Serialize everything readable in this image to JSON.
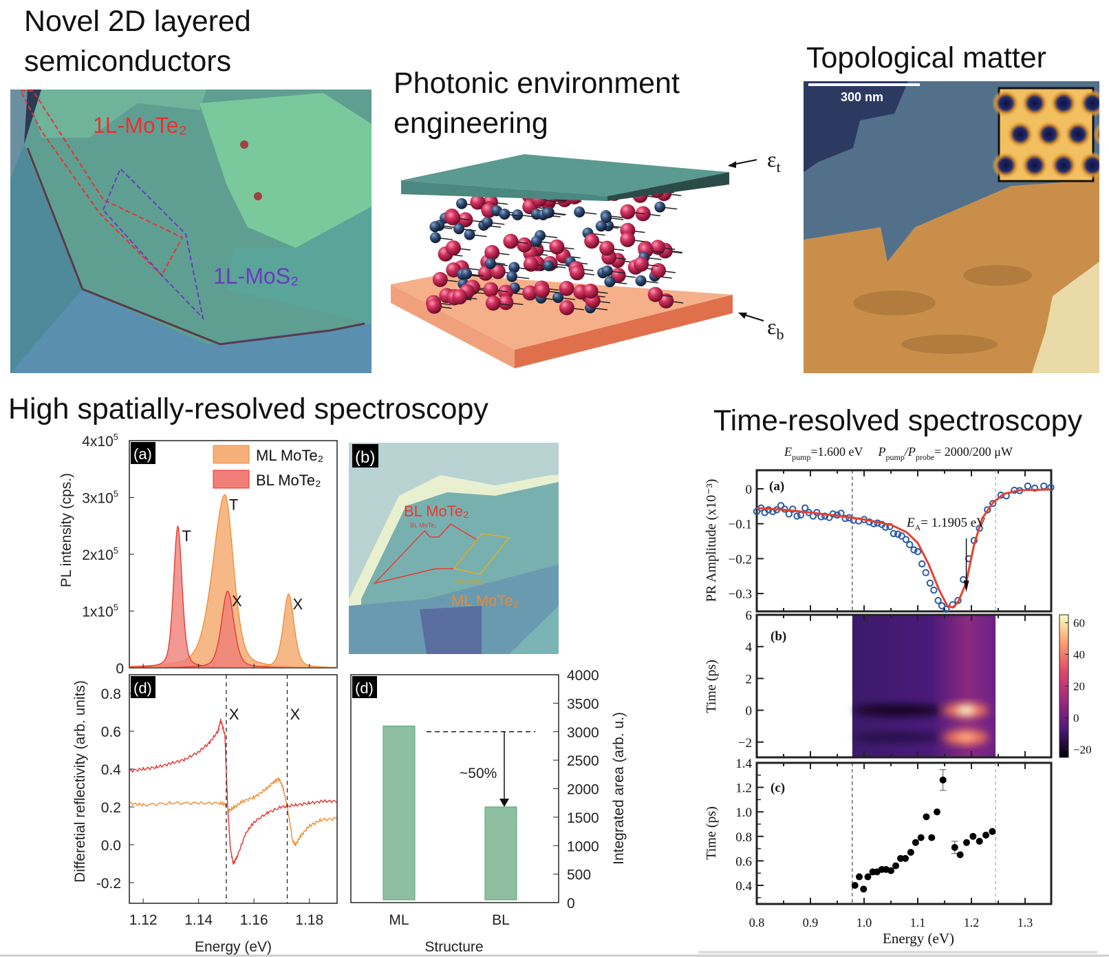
{
  "semiconductors": {
    "title_line1": "Novel 2D layered",
    "title_line2": "semiconductors",
    "label_mote2": "1L-MoTe₂",
    "label_mos2": "1L-MoS₂"
  },
  "photonic": {
    "title_line1": "Photonic environment",
    "title_line2": "engineering",
    "eps_top": "ε",
    "eps_top_sub": "t",
    "eps_bottom": "ε",
    "eps_bottom_sub": "b"
  },
  "topological": {
    "title": "Topological matter",
    "scale_bar": "300 nm"
  },
  "spatial": {
    "title": "High spatially-resolved spectroscopy",
    "image_b": {
      "panel_label": "(b)",
      "bl_large": "BL MoTe₂",
      "bl_small": "BL MoTe₂",
      "ml_small": "ML MoTe₂",
      "ml_large": "ML MoTe₂"
    },
    "energy_label": "Energy (eV)"
  },
  "time_resolved": {
    "title": "Time-resolved spectroscopy",
    "header": {
      "e": "E",
      "e_sub": "pump",
      "e_val": "=1.600 eV",
      "p1": "P",
      "p1_sub": "pump",
      "slash": "/P",
      "p2_sub": "probe",
      "p_val": "= 2000/200 μW"
    },
    "energy_label": "Energy (eV)"
  },
  "colors": {
    "ml": "#f5b07a",
    "ml_line": "#f08a30",
    "bl": "#ef7f78",
    "bl_line": "#e8322a",
    "bar": "#8dbfa0",
    "pr_points": "#2a5aa8",
    "pr_fit": "#e8402a"
  },
  "chart_data": [
    {
      "id": "pl",
      "type": "area",
      "panel_label": "(a)",
      "ylabel": "PL intensity (cps.)",
      "xlim": [
        1.115,
        1.19
      ],
      "ylim": [
        0,
        400000
      ],
      "yticks": [
        {
          "v": 0,
          "text": "0",
          "sup": ""
        },
        {
          "v": 100000,
          "text": "1x10",
          "sup": "5"
        },
        {
          "v": 200000,
          "text": "2x10",
          "sup": "5"
        },
        {
          "v": 300000,
          "text": "3x10",
          "sup": "5"
        },
        {
          "v": 400000,
          "text": "4x10",
          "sup": "5"
        }
      ],
      "legend": "top-right",
      "series": [
        {
          "name": "ML MoTe₂",
          "peaks": [
            {
              "label": "T",
              "energy": 1.1495,
              "intensity": 305000,
              "width": 0.0045
            },
            {
              "label": "X",
              "energy": 1.1725,
              "intensity": 130000,
              "width": 0.0028
            }
          ]
        },
        {
          "name": "BL MoTe₂",
          "peaks": [
            {
              "label": "T",
              "energy": 1.1325,
              "intensity": 250000,
              "width": 0.0022
            },
            {
              "label": "X",
              "energy": 1.1505,
              "intensity": 135000,
              "width": 0.0032
            }
          ]
        }
      ]
    },
    {
      "id": "dr",
      "type": "line",
      "panel_label": "(d)",
      "xlabel": "Energy (eV)",
      "ylabel": "Differetial reflectivity (arb. units)",
      "xlim": [
        1.115,
        1.19
      ],
      "ylim": [
        -0.31,
        0.9
      ],
      "xticks": [
        1.12,
        1.14,
        1.16,
        1.18
      ],
      "yticks": [
        -0.2,
        0.0,
        0.2,
        0.4,
        0.6,
        0.8
      ],
      "vlines": [
        1.15,
        1.172
      ],
      "vline_labels": [
        "X",
        "X"
      ],
      "series": [
        {
          "color": "#e8302a",
          "points": [
            [
              1.115,
              0.39
            ],
            [
              1.12,
              0.4
            ],
            [
              1.125,
              0.41
            ],
            [
              1.13,
              0.43
            ],
            [
              1.135,
              0.45
            ],
            [
              1.14,
              0.49
            ],
            [
              1.144,
              0.54
            ],
            [
              1.147,
              0.6
            ],
            [
              1.148,
              0.66
            ],
            [
              1.1495,
              0.58
            ],
            [
              1.1505,
              0.2
            ],
            [
              1.1515,
              -0.02
            ],
            [
              1.1525,
              -0.1
            ],
            [
              1.154,
              -0.06
            ],
            [
              1.157,
              0.06
            ],
            [
              1.16,
              0.12
            ],
            [
              1.165,
              0.17
            ],
            [
              1.17,
              0.2
            ],
            [
              1.175,
              0.21
            ],
            [
              1.18,
              0.22
            ],
            [
              1.185,
              0.23
            ],
            [
              1.19,
              0.23
            ]
          ]
        },
        {
          "color": "#f08a30",
          "points": [
            [
              1.115,
              0.22
            ],
            [
              1.12,
              0.21
            ],
            [
              1.13,
              0.22
            ],
            [
              1.14,
              0.22
            ],
            [
              1.148,
              0.22
            ],
            [
              1.15,
              0.21
            ],
            [
              1.151,
              0.18
            ],
            [
              1.153,
              0.2
            ],
            [
              1.156,
              0.23
            ],
            [
              1.16,
              0.25
            ],
            [
              1.164,
              0.29
            ],
            [
              1.167,
              0.33
            ],
            [
              1.169,
              0.35
            ],
            [
              1.1705,
              0.3
            ],
            [
              1.172,
              0.2
            ],
            [
              1.174,
              0.02
            ],
            [
              1.175,
              0.0
            ],
            [
              1.177,
              0.05
            ],
            [
              1.18,
              0.1
            ],
            [
              1.184,
              0.13
            ],
            [
              1.19,
              0.14
            ]
          ]
        }
      ]
    },
    {
      "id": "bar",
      "type": "bar",
      "panel_label": "(d)",
      "xlabel": "Structure",
      "ylabel": "Integrated area (arb. u.)",
      "categories": [
        "ML",
        "BL"
      ],
      "values": [
        3100,
        1680
      ],
      "ylim": [
        0,
        4000
      ],
      "yticks": [
        0,
        500,
        1000,
        1500,
        2000,
        2500,
        3000,
        3500,
        4000
      ],
      "reference_line": 3000,
      "annotation": "~50%"
    },
    {
      "id": "pr",
      "type": "scatter",
      "panel_label": "(a)",
      "ylabel": "PR Amplitude (x10⁻³)",
      "xlim": [
        0.8,
        1.35
      ],
      "ylim": [
        -0.345,
        0.05
      ],
      "yticks": [
        0,
        -0.1,
        -0.2,
        -0.3
      ],
      "ytick_labels": [
        "0",
        "−0.1",
        "−0.2",
        "−0.3"
      ],
      "vlines": [
        0.978,
        1.245
      ],
      "annotation": {
        "text": "E",
        "sub": "A",
        "rest": "= 1.1905 eV",
        "energy": 1.1905
      },
      "points": [
        [
          0.8,
          -0.065
        ],
        [
          0.808,
          -0.055
        ],
        [
          0.815,
          -0.068
        ],
        [
          0.822,
          -0.06
        ],
        [
          0.83,
          -0.065
        ],
        [
          0.837,
          -0.06
        ],
        [
          0.845,
          -0.048
        ],
        [
          0.852,
          -0.058
        ],
        [
          0.86,
          -0.072
        ],
        [
          0.867,
          -0.058
        ],
        [
          0.875,
          -0.078
        ],
        [
          0.882,
          -0.075
        ],
        [
          0.89,
          -0.055
        ],
        [
          0.897,
          -0.068
        ],
        [
          0.905,
          -0.078
        ],
        [
          0.912,
          -0.068
        ],
        [
          0.92,
          -0.08
        ],
        [
          0.927,
          -0.078
        ],
        [
          0.935,
          -0.082
        ],
        [
          0.942,
          -0.072
        ],
        [
          0.95,
          -0.075
        ],
        [
          0.957,
          -0.07
        ],
        [
          0.965,
          -0.085
        ],
        [
          0.972,
          -0.083
        ],
        [
          0.98,
          -0.09
        ],
        [
          0.99,
          -0.092
        ],
        [
          1.0,
          -0.088
        ],
        [
          1.01,
          -0.095
        ],
        [
          1.018,
          -0.1
        ],
        [
          1.025,
          -0.098
        ],
        [
          1.033,
          -0.102
        ],
        [
          1.04,
          -0.11
        ],
        [
          1.048,
          -0.108
        ],
        [
          1.055,
          -0.128
        ],
        [
          1.063,
          -0.13
        ],
        [
          1.07,
          -0.135
        ],
        [
          1.078,
          -0.145
        ],
        [
          1.085,
          -0.16
        ],
        [
          1.093,
          -0.175
        ],
        [
          1.1,
          -0.18
        ],
        [
          1.108,
          -0.215
        ],
        [
          1.115,
          -0.24
        ],
        [
          1.123,
          -0.27
        ],
        [
          1.13,
          -0.29
        ],
        [
          1.138,
          -0.32
        ],
        [
          1.145,
          -0.335
        ],
        [
          1.153,
          -0.345
        ],
        [
          1.165,
          -0.332
        ],
        [
          1.175,
          -0.32
        ],
        [
          1.185,
          -0.26
        ],
        [
          1.195,
          -0.2
        ],
        [
          1.205,
          -0.148
        ],
        [
          1.215,
          -0.113
        ],
        [
          1.23,
          -0.06
        ],
        [
          1.24,
          -0.042
        ],
        [
          1.255,
          -0.018
        ],
        [
          1.265,
          -0.02
        ],
        [
          1.28,
          -0.004
        ],
        [
          1.29,
          -0.005
        ],
        [
          1.305,
          0.008
        ],
        [
          1.318,
          0.002
        ],
        [
          1.335,
          0.008
        ],
        [
          1.348,
          0.004
        ]
      ],
      "fit": [
        [
          0.8,
          -0.055
        ],
        [
          0.85,
          -0.06
        ],
        [
          0.9,
          -0.068
        ],
        [
          0.95,
          -0.077
        ],
        [
          1.0,
          -0.088
        ],
        [
          1.05,
          -0.103
        ],
        [
          1.08,
          -0.125
        ],
        [
          1.1,
          -0.155
        ],
        [
          1.12,
          -0.215
        ],
        [
          1.14,
          -0.29
        ],
        [
          1.155,
          -0.335
        ],
        [
          1.165,
          -0.34
        ],
        [
          1.175,
          -0.325
        ],
        [
          1.19,
          -0.27
        ],
        [
          1.205,
          -0.16
        ],
        [
          1.22,
          -0.085
        ],
        [
          1.24,
          -0.04
        ],
        [
          1.26,
          -0.015
        ],
        [
          1.29,
          -0.004
        ],
        [
          1.348,
          -0.002
        ]
      ]
    },
    {
      "id": "tr_map",
      "type": "heatmap",
      "panel_label": "(b)",
      "ylabel": "Time (ps)",
      "ylim": [
        -2.9,
        6
      ],
      "yticks": [
        -2,
        0,
        2,
        4,
        6
      ],
      "ytick_labels": [
        "−2",
        "0",
        "2",
        "4",
        "6"
      ],
      "data_xrange": [
        0.978,
        1.245
      ],
      "colormap": "magma",
      "colorbar": {
        "range": [
          -25,
          65
        ],
        "ticks": [
          60,
          40,
          20,
          0,
          -20
        ],
        "tick_labels": [
          "60",
          "40",
          "20",
          "0",
          "−20"
        ]
      },
      "features": [
        {
          "energy": 1.19,
          "time": 0,
          "value": 65
        },
        {
          "energy": 1.19,
          "time": -1.7,
          "value": 45
        },
        {
          "energy_range": [
            0.98,
            1.15
          ],
          "time": 0,
          "value": -25
        },
        {
          "energy_range": [
            0.98,
            1.15
          ],
          "time": -1.7,
          "value": -15
        }
      ]
    },
    {
      "id": "tr_lifetime",
      "type": "scatter",
      "panel_label": "(c)",
      "xlabel": "Energy (eV)",
      "ylabel": "Time (ps)",
      "xlim": [
        0.8,
        1.35
      ],
      "ylim": [
        0.25,
        1.4
      ],
      "xticks": [
        0.8,
        0.9,
        1.0,
        1.1,
        1.2,
        1.3
      ],
      "yticks": [
        0.4,
        0.6,
        0.8,
        1.0,
        1.2,
        1.4
      ],
      "vlines": [
        0.978,
        1.245
      ],
      "points": [
        [
          0.983,
          0.4,
          0.01
        ],
        [
          0.991,
          0.47,
          0.01
        ],
        [
          0.999,
          0.37,
          0.01
        ],
        [
          1.007,
          0.47,
          0.01
        ],
        [
          1.016,
          0.51,
          0.015
        ],
        [
          1.024,
          0.51,
          0.01
        ],
        [
          1.033,
          0.53,
          0.01
        ],
        [
          1.041,
          0.53,
          0.01
        ],
        [
          1.05,
          0.52,
          0.01
        ],
        [
          1.059,
          0.56,
          0.01
        ],
        [
          1.068,
          0.62,
          0.01
        ],
        [
          1.077,
          0.62,
          0.01
        ],
        [
          1.087,
          0.67,
          0.01
        ],
        [
          1.096,
          0.75,
          0.01
        ],
        [
          1.106,
          0.79,
          0.01
        ],
        [
          1.116,
          0.96,
          0.01
        ],
        [
          1.126,
          0.79,
          0.01
        ],
        [
          1.136,
          1.0,
          0.015
        ],
        [
          1.147,
          1.26,
          0.085
        ],
        [
          1.169,
          0.71,
          0.05
        ],
        [
          1.179,
          0.65,
          0.01
        ],
        [
          1.191,
          0.75,
          0.01
        ],
        [
          1.203,
          0.8,
          0.01
        ],
        [
          1.215,
          0.76,
          0.01
        ],
        [
          1.227,
          0.81,
          0.01
        ],
        [
          1.239,
          0.84,
          0.01
        ]
      ]
    }
  ]
}
